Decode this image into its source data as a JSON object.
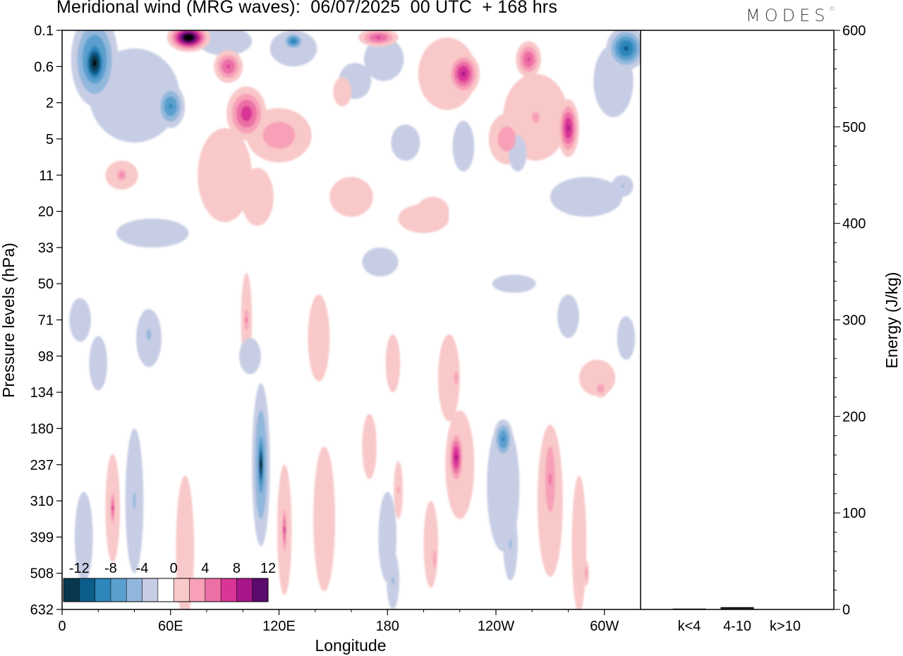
{
  "header": {
    "title": "Meridional wind (MRG waves):  06/07/2025  00 UTC  + 168 hrs",
    "logo": "MODES",
    "logo_mark": "©"
  },
  "chart_data": [
    {
      "type": "heatmap",
      "title": "Meridional wind (MRG waves):  06/07/2025  00 UTC  + 168 hrs",
      "xlabel": "Longitude",
      "ylabel": "Pressure levels (hPa)",
      "x_ticks": [
        "0",
        "60E",
        "120E",
        "180",
        "120W",
        "60W"
      ],
      "xlim": [
        0,
        320
      ],
      "y_ticks": [
        "0.1",
        "0.6",
        "2",
        "5",
        "11",
        "20",
        "33",
        "50",
        "71",
        "98",
        "134",
        "180",
        "237",
        "310",
        "399",
        "508",
        "632"
      ],
      "colorbar": {
        "labels": [
          "-12",
          "-8",
          "-4",
          "0",
          "4",
          "8",
          "12"
        ],
        "levels": [
          -14,
          -12,
          -10,
          -8,
          -6,
          -4,
          -2,
          2,
          4,
          6,
          8,
          10,
          12,
          14
        ],
        "colors": [
          "#08384f",
          "#0b5d8a",
          "#2e86bb",
          "#5a9fce",
          "#92b7dc",
          "#c7cde4",
          "#ffffff",
          "#f9c8c8",
          "#f7a0b8",
          "#ec6fa6",
          "#d93596",
          "#a8168a",
          "#5b0a6e"
        ]
      },
      "blobs": [
        {
          "lon": 18,
          "lev": 0.9,
          "w": 16,
          "h": 1.6,
          "v": -14
        },
        {
          "lon": 18,
          "lev": 0.8,
          "w": 26,
          "h": 2.6,
          "v": -9
        },
        {
          "lon": 60,
          "lev": 2.1,
          "w": 16,
          "h": 1.2,
          "v": -8
        },
        {
          "lon": 40,
          "lev": 1.8,
          "w": 50,
          "h": 2.6,
          "v": -3
        },
        {
          "lon": 70,
          "lev": 0.2,
          "w": 24,
          "h": 0.8,
          "v": 16
        },
        {
          "lon": 92,
          "lev": 1.0,
          "w": 16,
          "h": 0.9,
          "v": 8
        },
        {
          "lon": 102,
          "lev": 2.3,
          "w": 22,
          "h": 1.5,
          "v": 9
        },
        {
          "lon": 120,
          "lev": 2.9,
          "w": 36,
          "h": 1.5,
          "v": 5
        },
        {
          "lon": 90,
          "lev": 4.0,
          "w": 30,
          "h": 2.6,
          "v": 2.8
        },
        {
          "lon": 93,
          "lev": 4.6,
          "w": 6,
          "h": 1.2,
          "v": 3
        },
        {
          "lon": 128,
          "lev": 0.3,
          "w": 12,
          "h": 0.5,
          "v": -9
        },
        {
          "lon": 128,
          "lev": 0.5,
          "w": 26,
          "h": 1.0,
          "v": -3.5
        },
        {
          "lon": 90,
          "lev": 0.3,
          "w": 30,
          "h": 0.8,
          "v": -3
        },
        {
          "lon": 162,
          "lev": 1.4,
          "w": 18,
          "h": 1.0,
          "v": -2.8
        },
        {
          "lon": 178,
          "lev": 0.8,
          "w": 22,
          "h": 1.2,
          "v": -3
        },
        {
          "lon": 175,
          "lev": 0.2,
          "w": 22,
          "h": 0.5,
          "v": 8
        },
        {
          "lon": 155,
          "lev": 1.7,
          "w": 10,
          "h": 0.8,
          "v": 3
        },
        {
          "lon": 222,
          "lev": 1.2,
          "w": 18,
          "h": 1.2,
          "v": 10
        },
        {
          "lon": 213,
          "lev": 1.2,
          "w": 32,
          "h": 2.0,
          "v": 3
        },
        {
          "lon": 258,
          "lev": 0.8,
          "w": 14,
          "h": 1.0,
          "v": 8
        },
        {
          "lon": 280,
          "lev": 2.7,
          "w": 12,
          "h": 1.6,
          "v": 10
        },
        {
          "lon": 262,
          "lev": 2.4,
          "w": 36,
          "h": 2.4,
          "v": 4
        },
        {
          "lon": 246,
          "lev": 3.0,
          "w": 20,
          "h": 1.4,
          "v": 5
        },
        {
          "lon": 312,
          "lev": 0.5,
          "w": 22,
          "h": 1.2,
          "v": -10
        },
        {
          "lon": 305,
          "lev": 1.4,
          "w": 22,
          "h": 2.0,
          "v": -3
        },
        {
          "lon": 252,
          "lev": 3.4,
          "w": 10,
          "h": 1.0,
          "v": -3
        },
        {
          "lon": 222,
          "lev": 3.2,
          "w": 12,
          "h": 1.4,
          "v": -3
        },
        {
          "lon": 190,
          "lev": 3.1,
          "w": 16,
          "h": 1.0,
          "v": -3
        },
        {
          "lon": 205,
          "lev": 5.0,
          "w": 18,
          "h": 0.8,
          "v": 3
        },
        {
          "lon": 33,
          "lev": 4.0,
          "w": 8,
          "h": 0.5,
          "v": 6
        },
        {
          "lon": 33,
          "lev": 4.0,
          "w": 18,
          "h": 0.8,
          "v": 2.8
        },
        {
          "lon": 108,
          "lev": 4.6,
          "w": 18,
          "h": 1.6,
          "v": 2.8
        },
        {
          "lon": 160,
          "lev": 4.6,
          "w": 24,
          "h": 1.1,
          "v": 2.8
        },
        {
          "lon": 200,
          "lev": 5.2,
          "w": 28,
          "h": 0.8,
          "v": 2.8
        },
        {
          "lon": 290,
          "lev": 4.6,
          "w": 40,
          "h": 1.1,
          "v": -2.8
        },
        {
          "lon": 310,
          "lev": 4.3,
          "w": 12,
          "h": 0.6,
          "v": -4
        },
        {
          "lon": 50,
          "lev": 5.6,
          "w": 40,
          "h": 0.8,
          "v": -2.8
        },
        {
          "lon": 250,
          "lev": 7.0,
          "w": 24,
          "h": 0.5,
          "v": -2.8
        },
        {
          "lon": 10,
          "lev": 8.0,
          "w": 12,
          "h": 1.2,
          "v": -2.8
        },
        {
          "lon": 48,
          "lev": 8.5,
          "w": 14,
          "h": 1.6,
          "v": -3
        },
        {
          "lon": 48,
          "lev": 8.4,
          "w": 5,
          "h": 0.6,
          "v": -5
        },
        {
          "lon": 102,
          "lev": 8.0,
          "w": 6,
          "h": 2.6,
          "v": 3.5
        },
        {
          "lon": 102,
          "lev": 8.0,
          "w": 3,
          "h": 1.0,
          "v": 6
        },
        {
          "lon": 142,
          "lev": 8.5,
          "w": 12,
          "h": 2.4,
          "v": 3
        },
        {
          "lon": 104,
          "lev": 9.0,
          "w": 12,
          "h": 1.0,
          "v": -2.8
        },
        {
          "lon": 110,
          "lev": 12.0,
          "w": 10,
          "h": 4.5,
          "v": -7
        },
        {
          "lon": 110,
          "lev": 12.0,
          "w": 4,
          "h": 2.0,
          "v": -14
        },
        {
          "lon": 40,
          "lev": 13.0,
          "w": 10,
          "h": 4.0,
          "v": -4
        },
        {
          "lon": 28,
          "lev": 13.2,
          "w": 8,
          "h": 3.0,
          "v": 3
        },
        {
          "lon": 28,
          "lev": 13.2,
          "w": 3,
          "h": 1.2,
          "v": 8
        },
        {
          "lon": 12,
          "lev": 14.0,
          "w": 10,
          "h": 2.5,
          "v": -2.8
        },
        {
          "lon": 180,
          "lev": 14.0,
          "w": 10,
          "h": 2.5,
          "v": -3
        },
        {
          "lon": 183,
          "lev": 15.2,
          "w": 7,
          "h": 1.6,
          "v": -4
        },
        {
          "lon": 123,
          "lev": 13.8,
          "w": 8,
          "h": 3.6,
          "v": 4
        },
        {
          "lon": 123,
          "lev": 13.8,
          "w": 3,
          "h": 1.6,
          "v": 8
        },
        {
          "lon": 145,
          "lev": 13.5,
          "w": 12,
          "h": 4.0,
          "v": 2.8
        },
        {
          "lon": 170,
          "lev": 11.5,
          "w": 8,
          "h": 1.8,
          "v": 3
        },
        {
          "lon": 183,
          "lev": 9.2,
          "w": 8,
          "h": 1.6,
          "v": 2.8
        },
        {
          "lon": 214,
          "lev": 9.6,
          "w": 12,
          "h": 2.4,
          "v": 3
        },
        {
          "lon": 218,
          "lev": 9.6,
          "w": 4,
          "h": 0.7,
          "v": 5
        },
        {
          "lon": 218,
          "lev": 11.8,
          "w": 9,
          "h": 1.6,
          "v": 10
        },
        {
          "lon": 220,
          "lev": 12.0,
          "w": 16,
          "h": 3.0,
          "v": 4
        },
        {
          "lon": 244,
          "lev": 11.3,
          "w": 11,
          "h": 1.1,
          "v": -8
        },
        {
          "lon": 244,
          "lev": 12.6,
          "w": 18,
          "h": 3.6,
          "v": -3
        },
        {
          "lon": 248,
          "lev": 14.2,
          "w": 8,
          "h": 2.0,
          "v": -4
        },
        {
          "lon": 270,
          "lev": 12.4,
          "w": 9,
          "h": 3.0,
          "v": 6
        },
        {
          "lon": 270,
          "lev": 13.0,
          "w": 14,
          "h": 4.2,
          "v": 2.8
        },
        {
          "lon": 296,
          "lev": 9.6,
          "w": 20,
          "h": 1.0,
          "v": 3
        },
        {
          "lon": 298,
          "lev": 9.9,
          "w": 8,
          "h": 0.5,
          "v": 5
        },
        {
          "lon": 286,
          "lev": 14.2,
          "w": 8,
          "h": 3.8,
          "v": 2.8
        },
        {
          "lon": 290,
          "lev": 15.0,
          "w": 3,
          "h": 0.7,
          "v": 5
        },
        {
          "lon": 186,
          "lev": 12.7,
          "w": 5,
          "h": 1.6,
          "v": 4
        },
        {
          "lon": 204,
          "lev": 14.2,
          "w": 8,
          "h": 2.4,
          "v": 3
        },
        {
          "lon": 206,
          "lev": 14.6,
          "w": 3,
          "h": 1.0,
          "v": 5
        },
        {
          "lon": 68,
          "lev": 14.3,
          "w": 10,
          "h": 4.0,
          "v": 2.8
        },
        {
          "lon": 20,
          "lev": 9.2,
          "w": 10,
          "h": 1.5,
          "v": -2.8
        },
        {
          "lon": 280,
          "lev": 7.9,
          "w": 12,
          "h": 1.2,
          "v": -2.8
        },
        {
          "lon": 176,
          "lev": 6.4,
          "w": 20,
          "h": 0.8,
          "v": -2.8
        },
        {
          "lon": 312,
          "lev": 8.5,
          "w": 10,
          "h": 1.2,
          "v": -2.8
        }
      ]
    },
    {
      "type": "bar",
      "categories": [
        "k<4",
        "4-10",
        "k>10"
      ],
      "values": [
        0.5,
        2,
        0
      ],
      "ylabel": "Energy (J/kg)",
      "ylim": [
        0,
        600
      ],
      "y_ticks": [
        "0",
        "100",
        "200",
        "300",
        "400",
        "500",
        "600"
      ]
    }
  ]
}
